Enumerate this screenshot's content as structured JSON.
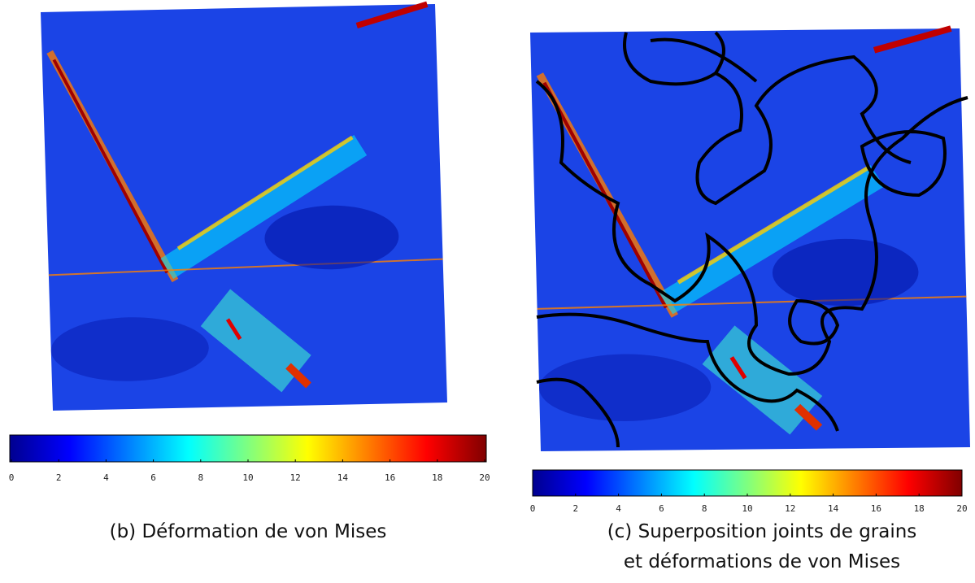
{
  "panels": [
    {
      "caption": [
        "(b) Déformation de von Mises"
      ],
      "colorbar": {
        "range": [
          0,
          20
        ],
        "ticks": [
          0,
          2,
          4,
          6,
          8,
          10,
          12,
          14,
          16,
          18,
          20
        ]
      }
    },
    {
      "caption": [
        "(c) Superposition joints de grains",
        "et déformations de von Mises"
      ],
      "colorbar": {
        "range": [
          0,
          20
        ],
        "ticks": [
          0,
          2,
          4,
          6,
          8,
          10,
          12,
          14,
          16,
          18,
          20
        ]
      }
    }
  ]
}
